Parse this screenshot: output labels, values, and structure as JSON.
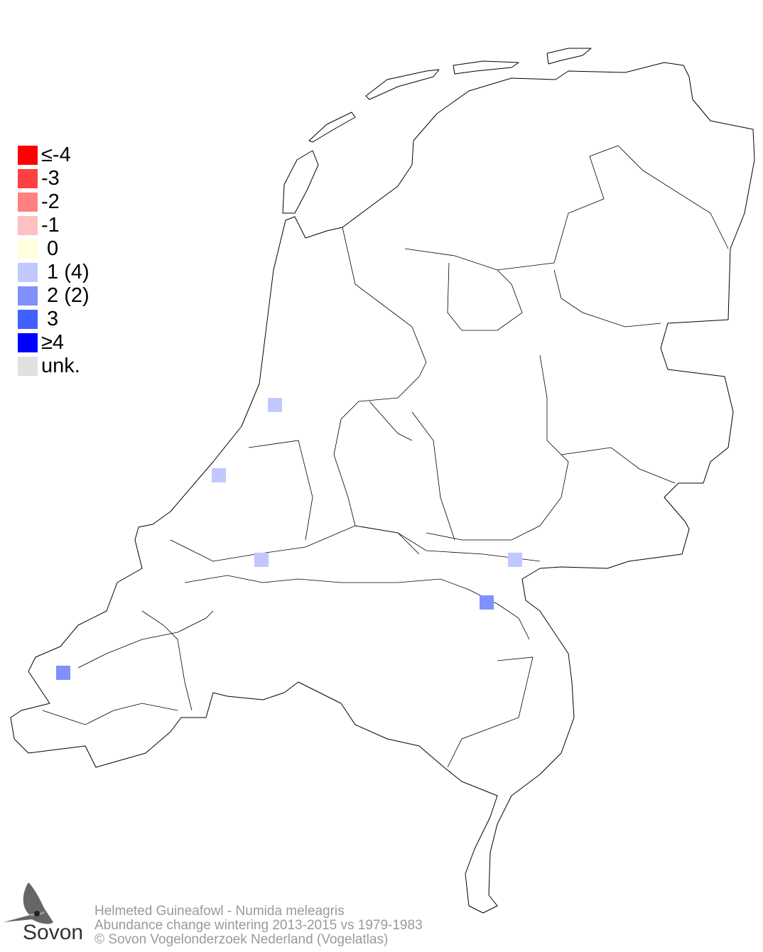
{
  "title": "Helmeted Guineafowl - Numida meleagris",
  "subtitle": "Abundance change wintering  2013-2015 vs 1979-1983",
  "copyright": "© Sovon Vogelonderzoek Nederland (Vogelatlas)",
  "logo_text": "Sovon",
  "legend": [
    {
      "label": "≤-4",
      "color": "#ff0000"
    },
    {
      "label": "-3",
      "color": "#ff4040"
    },
    {
      "label": "-2",
      "color": "#ff8080"
    },
    {
      "label": "-1",
      "color": "#ffc0c0"
    },
    {
      "label": " 0",
      "color": "#ffffe0"
    },
    {
      "label": " 1 (4)",
      "color": "#c0c8ff"
    },
    {
      "label": " 2 (2)",
      "color": "#8090ff"
    },
    {
      "label": " 3",
      "color": "#4060ff"
    },
    {
      "label": "≥4",
      "color": "#0000ff"
    },
    {
      "label": "unk.",
      "color": "#e0e0e0"
    }
  ],
  "grid_cells": [
    {
      "class": 1,
      "location": "Haarlem area"
    },
    {
      "class": 1,
      "location": "Leiden area"
    },
    {
      "class": 1,
      "location": "Dordrecht area"
    },
    {
      "class": 1,
      "location": "Nijmegen area"
    },
    {
      "class": 2,
      "location": "Maas near Ravenstein"
    },
    {
      "class": 2,
      "location": "Walcheren"
    }
  ]
}
